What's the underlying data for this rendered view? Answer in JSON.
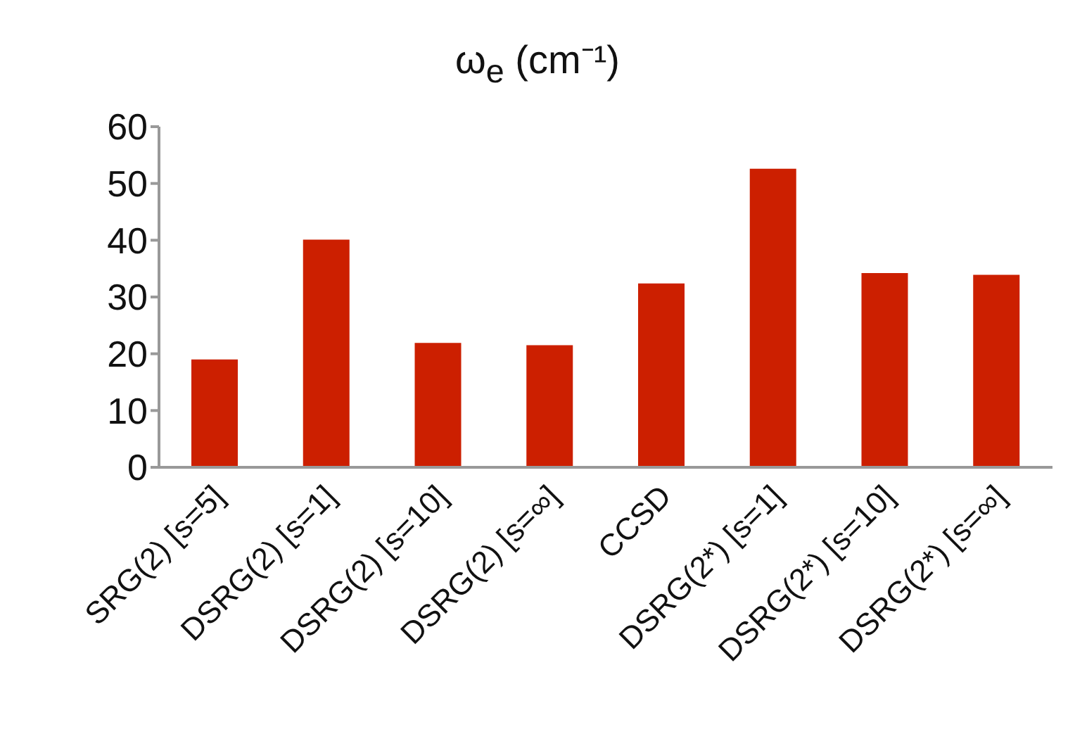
{
  "chart_data": {
    "type": "bar",
    "title": "ω$_{e}$ (cm⁻¹)",
    "categories": [
      "SRG(2) [s=5]",
      "DSRG(2) [s=1]",
      "DSRG(2) [s=10]",
      "DSRG(2) [s=∞]",
      "CCSD",
      "DSRG(2*) [s=1]",
      "DSRG(2*) [s=10]",
      "DSRG(2*) [s=∞]"
    ],
    "values": [
      19.0,
      40.1,
      21.9,
      21.5,
      32.4,
      52.6,
      34.2,
      33.9
    ],
    "color": "#cc1f00",
    "ylim": [
      0,
      60
    ],
    "yticks": [
      0,
      10,
      20,
      30,
      40,
      50,
      60
    ],
    "grid": false,
    "legend": false
  }
}
